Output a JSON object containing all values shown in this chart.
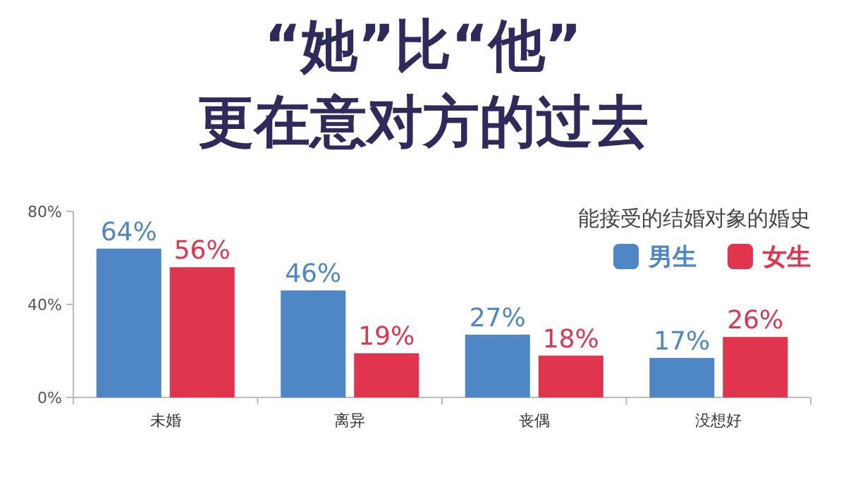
{
  "chart_data": {
    "type": "bar",
    "title": "“她”比“他”",
    "subtitle": "更在意对方的过去",
    "legend_title": "能接受的结婚对象的婚史",
    "categories": [
      "未婚",
      "离异",
      "丧偶",
      "没想好"
    ],
    "series": [
      {
        "name": "男生",
        "color": "#4f86c6",
        "values": [
          64,
          46,
          27,
          17
        ],
        "value_labels": [
          "64%",
          "46%",
          "27%",
          "17%"
        ]
      },
      {
        "name": "女生",
        "color": "#e0344f",
        "values": [
          56,
          19,
          18,
          26
        ],
        "value_labels": [
          "56%",
          "19%",
          "18%",
          "26%"
        ]
      }
    ],
    "ylim": [
      0,
      80
    ],
    "yticks": [
      {
        "value": 0,
        "label": "0%"
      },
      {
        "value": 40,
        "label": "40%"
      },
      {
        "value": 80,
        "label": "80%"
      }
    ],
    "grid": false,
    "legend": "top right"
  }
}
